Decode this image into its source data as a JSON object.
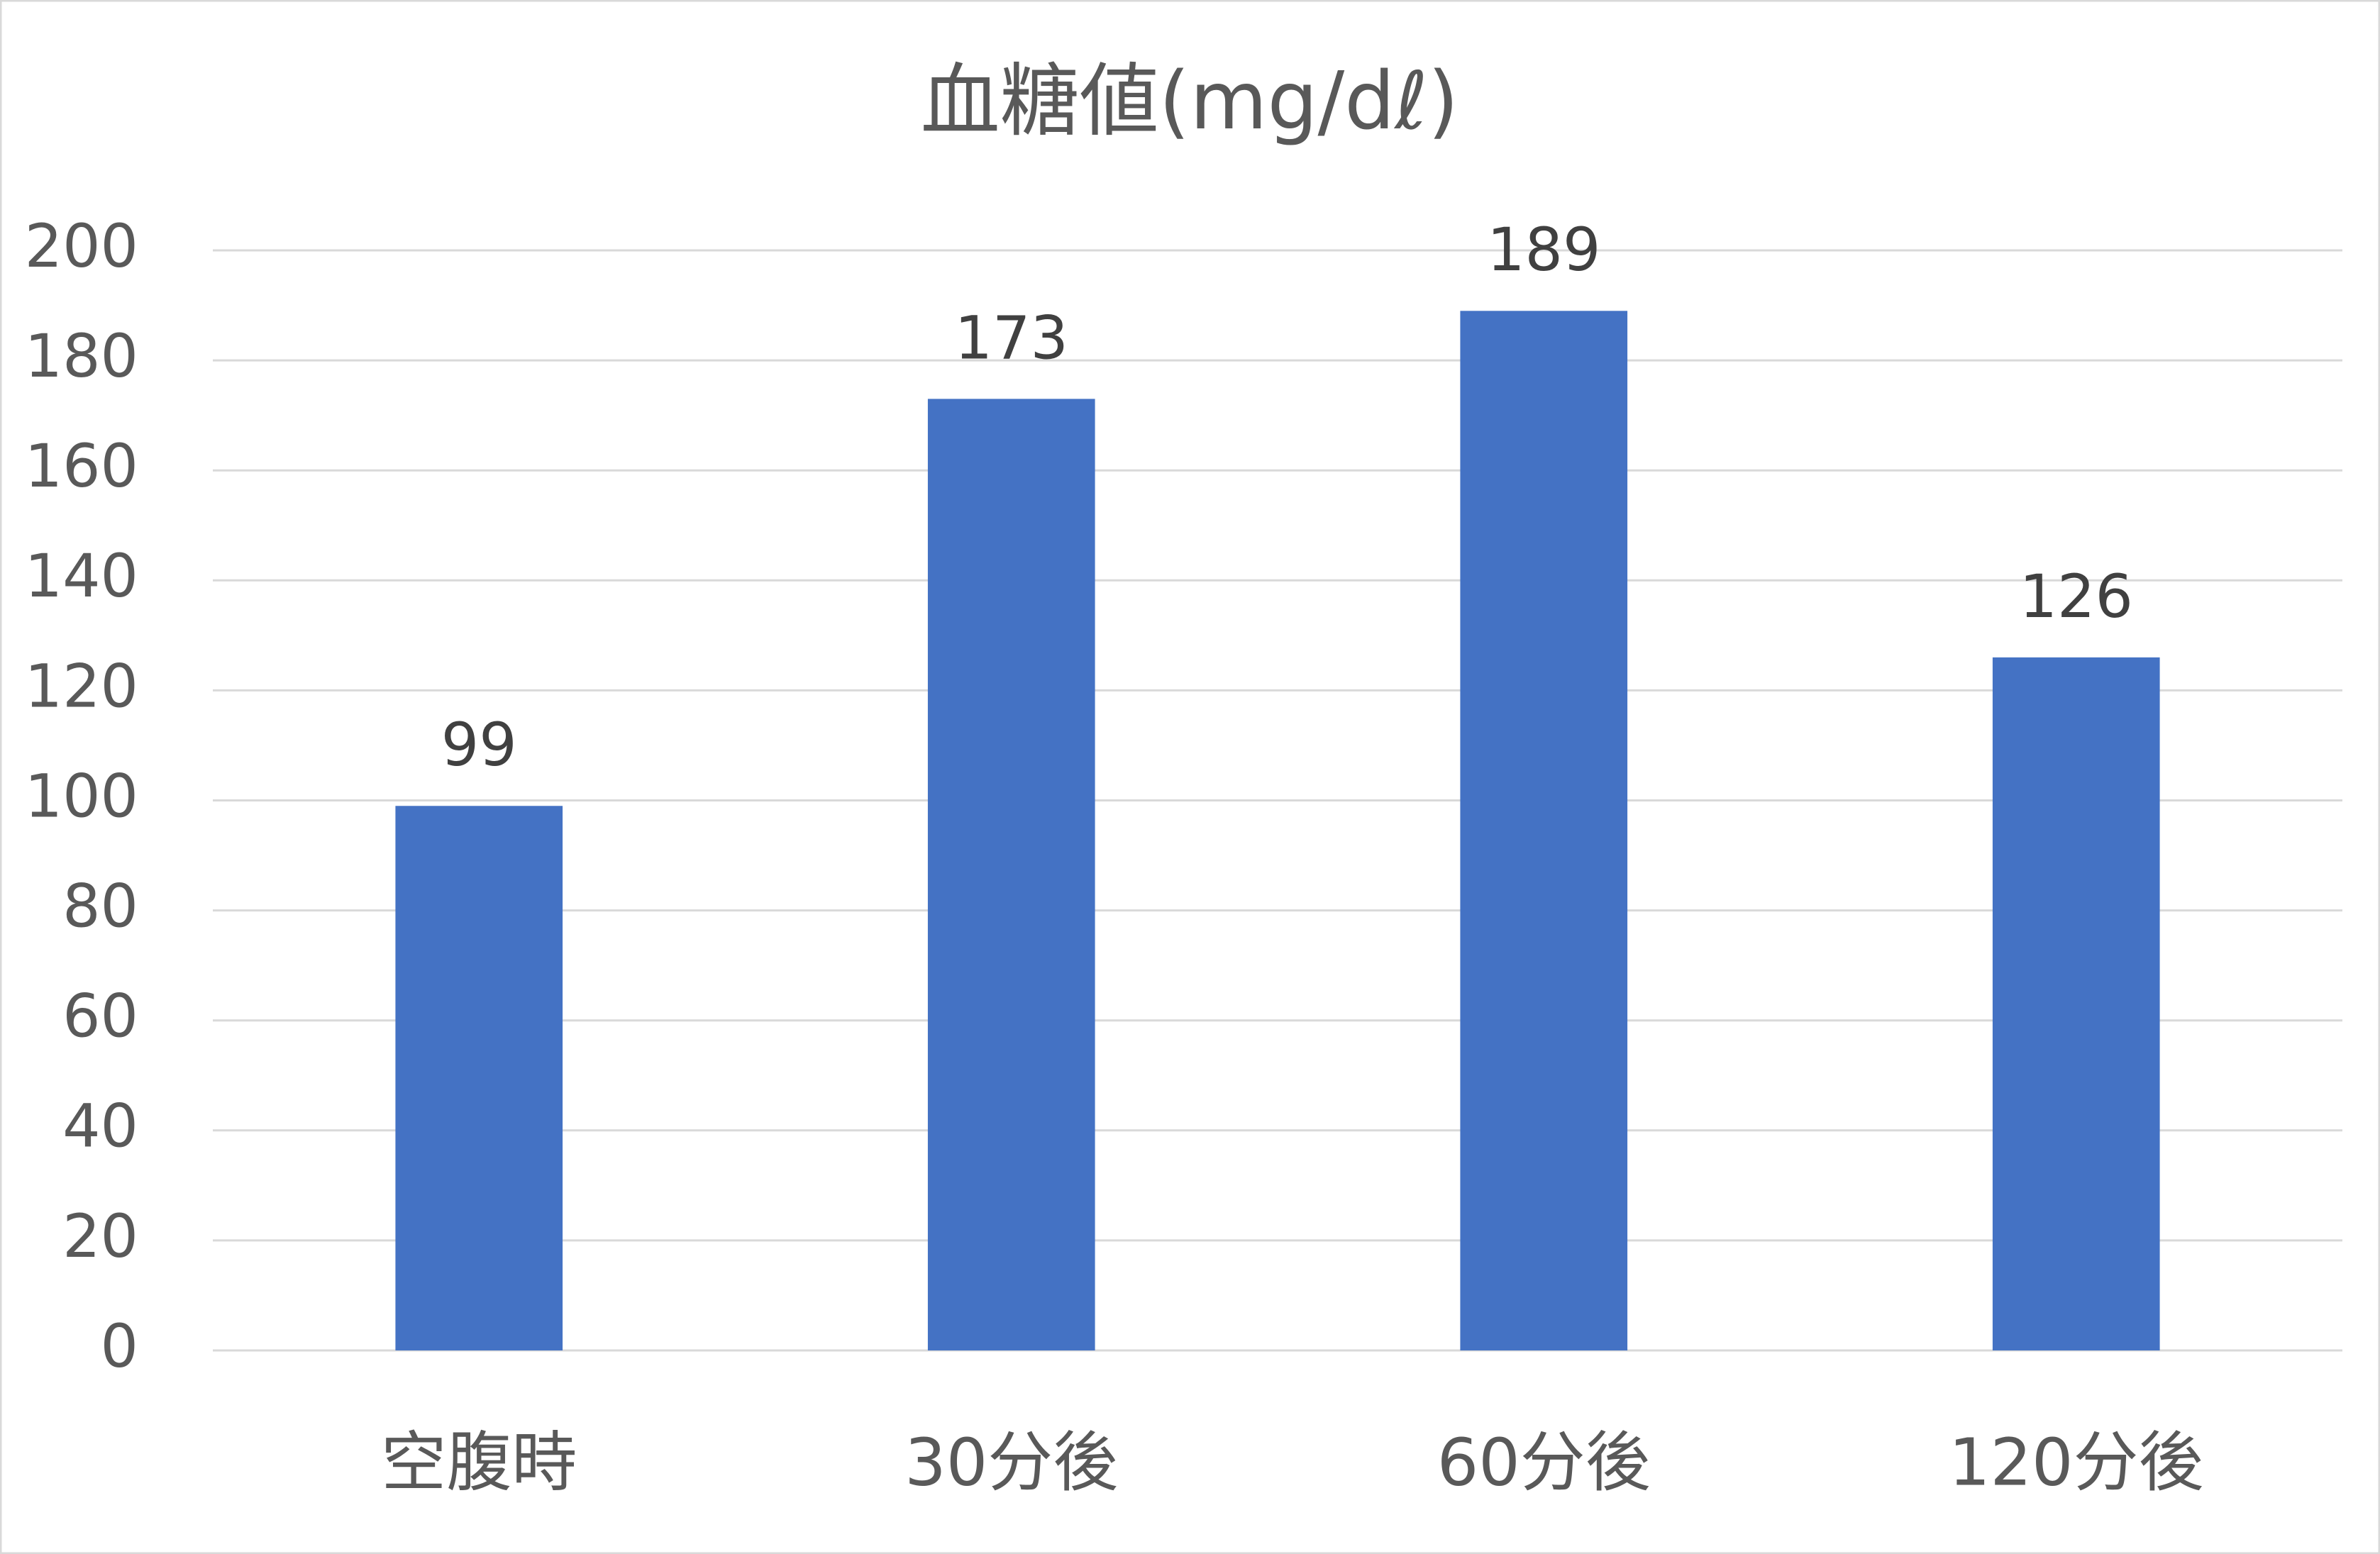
{
  "chart_data": {
    "type": "bar",
    "title": "血糖値(mg/dℓ)",
    "categories": [
      "空腹時",
      "30分後",
      "60分後",
      "120分後"
    ],
    "values": [
      99,
      173,
      189,
      126
    ],
    "color": "#4472c4",
    "ylim": [
      0,
      200
    ],
    "yticks": [
      0,
      20,
      40,
      60,
      80,
      100,
      120,
      140,
      160,
      180,
      200
    ],
    "grid": true
  }
}
